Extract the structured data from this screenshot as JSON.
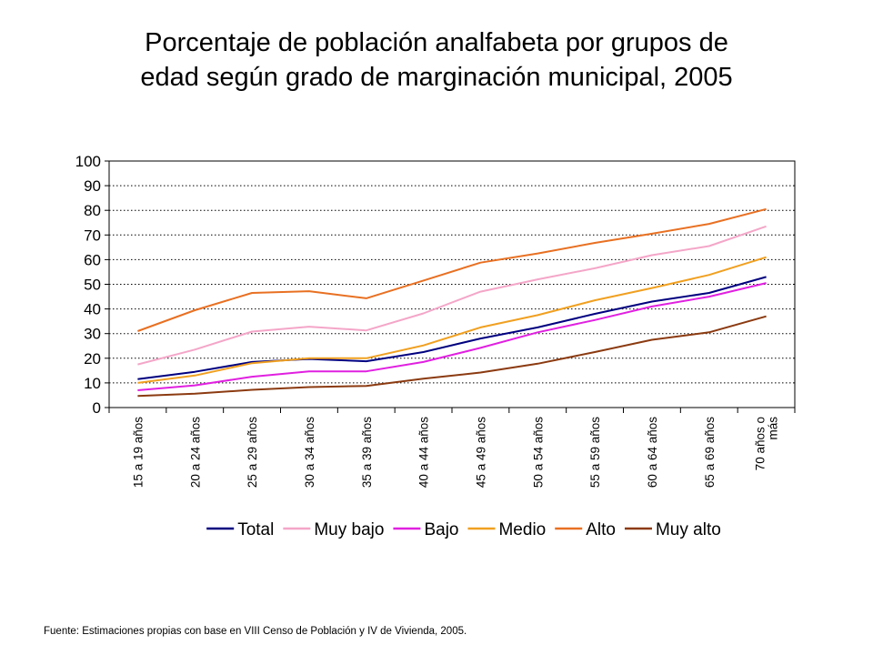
{
  "slide": {
    "title_line1": "Porcentaje de población analfabeta por grupos de",
    "title_line2": "edad según grado de marginación municipal, 2005",
    "source": "Fuente: Estimaciones propias con base en VIII Censo de Población y IV de Vivienda, 2005."
  },
  "chart_data": {
    "type": "line",
    "categories": [
      "15 a 19 años",
      "20 a 24 años",
      "25 a 29 años",
      "30 a 34 años",
      "35 a 39 años",
      "40 a 44 años",
      "45 a 49 años",
      "50 a 54 años",
      "55 a 59 años",
      "60 a 64 años",
      "65 a 69 años",
      "70 años o más"
    ],
    "category_lines": [
      [
        "15 a 19 años"
      ],
      [
        "20 a 24 años"
      ],
      [
        "25 a 29 años"
      ],
      [
        "30 a 34 años"
      ],
      [
        "35 a 39 años"
      ],
      [
        "40 a 44 años"
      ],
      [
        "45 a 49 años"
      ],
      [
        "50 a 54 años"
      ],
      [
        "55 a 59 años"
      ],
      [
        "60 a 64 años"
      ],
      [
        "65 a 69 años"
      ],
      [
        "70 años o",
        "más"
      ]
    ],
    "ylim": [
      0,
      100
    ],
    "yticks": [
      0,
      10,
      20,
      30,
      40,
      50,
      60,
      70,
      80,
      90,
      100
    ],
    "grid": "horizontal dotted",
    "legend_position": "bottom",
    "series": [
      {
        "name": "Total",
        "color": "#000080",
        "values": [
          11.5,
          14.5,
          18.5,
          19.7,
          18.8,
          22.5,
          28,
          32.5,
          38,
          43,
          46.5,
          53
        ]
      },
      {
        "name": "Muy bajo",
        "color": "#f4a6c8",
        "values": [
          17.5,
          23.5,
          30.8,
          32.8,
          31.3,
          38.2,
          47,
          52,
          56.5,
          61.8,
          65.5,
          73.5
        ]
      },
      {
        "name": "Bajo",
        "color": "#e020e0",
        "values": [
          7,
          9,
          12.5,
          14.7,
          14.7,
          18.5,
          24.2,
          30.5,
          35.5,
          41,
          45,
          50.5
        ]
      },
      {
        "name": "Medio",
        "color": "#f0a020",
        "values": [
          10,
          13,
          18,
          20,
          20,
          25.2,
          32.5,
          37.5,
          43.5,
          48.5,
          53.8,
          61
        ]
      },
      {
        "name": "Alto",
        "color": "#e87022",
        "values": [
          31,
          39.5,
          46.5,
          47.2,
          44.3,
          51.5,
          58.8,
          62.5,
          66.8,
          70.5,
          74.5,
          80.5
        ]
      },
      {
        "name": "Muy alto",
        "color": "#8b3a10",
        "values": [
          4.7,
          5.6,
          7.2,
          8.3,
          8.8,
          11.7,
          14.2,
          17.8,
          22.5,
          27.5,
          30.5,
          37
        ]
      }
    ]
  }
}
